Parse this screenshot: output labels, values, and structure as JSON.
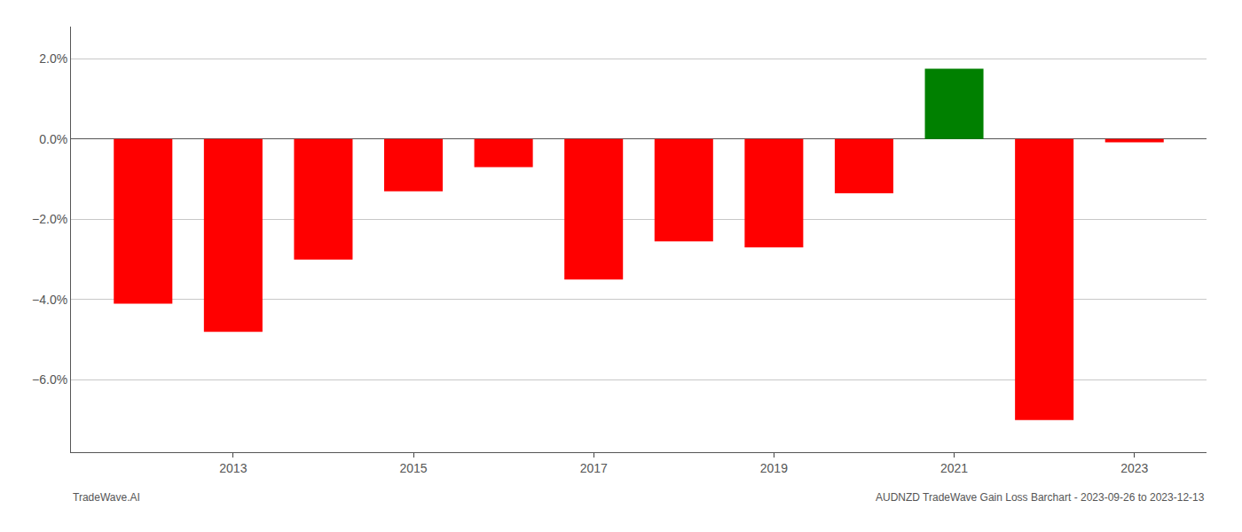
{
  "chart_data": {
    "type": "bar",
    "x": [
      2012,
      2013,
      2014,
      2015,
      2016,
      2017,
      2018,
      2019,
      2020,
      2021,
      2022,
      2023
    ],
    "values": [
      -4.1,
      -4.8,
      -3.0,
      -1.3,
      -0.7,
      -3.5,
      -2.55,
      -2.7,
      -1.35,
      1.75,
      -7.0,
      -0.08
    ],
    "colors": [
      "#ff0000",
      "#ff0000",
      "#ff0000",
      "#ff0000",
      "#ff0000",
      "#ff0000",
      "#ff0000",
      "#ff0000",
      "#ff0000",
      "#008000",
      "#ff0000",
      "#ff0000"
    ],
    "xlim": [
      2011.2,
      2023.8
    ],
    "xticks": [
      2013,
      2015,
      2017,
      2019,
      2021,
      2023
    ],
    "ylim": [
      -7.8,
      2.8
    ],
    "yticks": [
      {
        "value": 2.0,
        "label": "2.0%"
      },
      {
        "value": 0.0,
        "label": "0.0%"
      },
      {
        "value": -2.0,
        "label": "−2.0%"
      },
      {
        "value": -4.0,
        "label": "−4.0%"
      },
      {
        "value": -6.0,
        "label": "−6.0%"
      }
    ],
    "grid": "y",
    "annotations": [
      "TradeWave.AI",
      "AUDNZD TradeWave Gain Loss Barchart - 2023-09-26 to 2023-12-13"
    ]
  }
}
